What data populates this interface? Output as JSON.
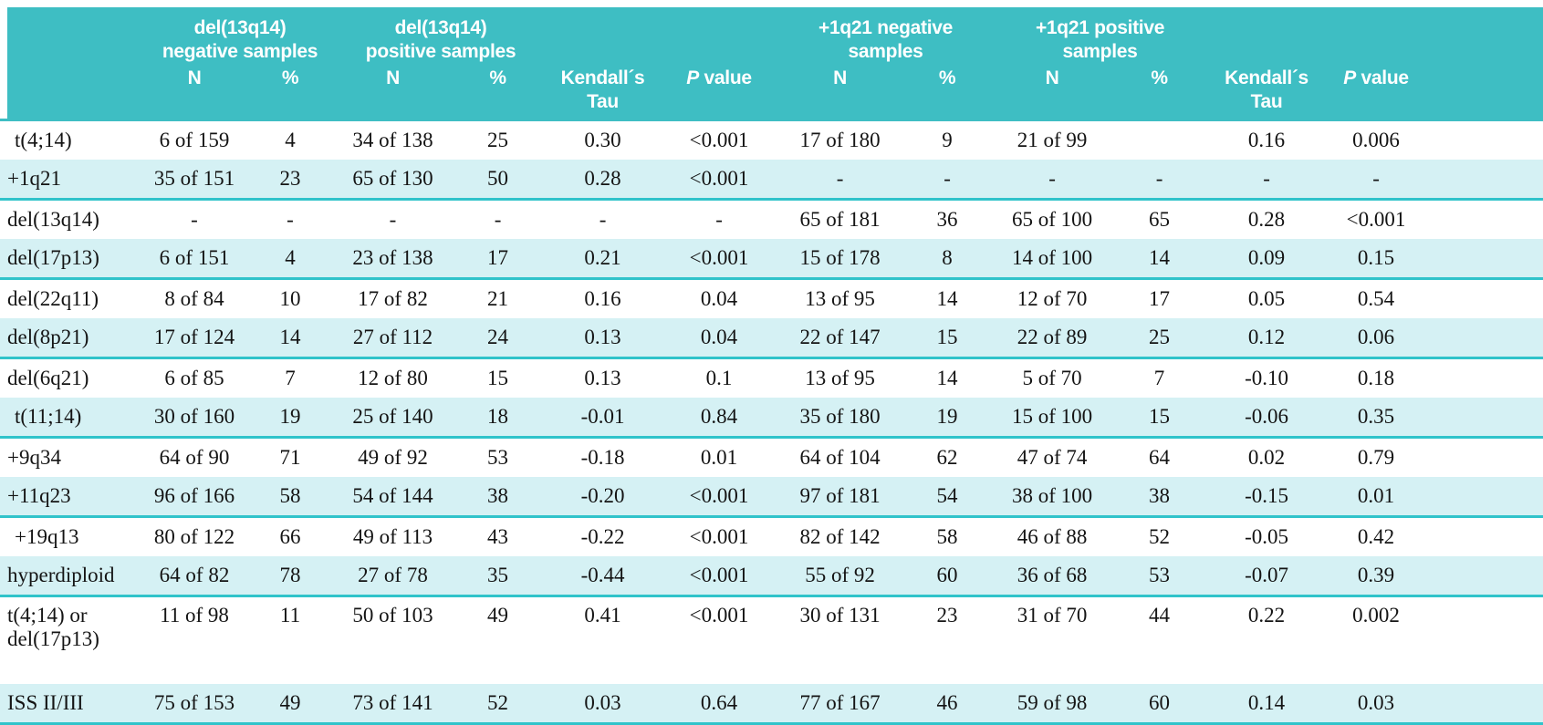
{
  "colors": {
    "header_teal": "#3EBEC3",
    "shaded_row_cyan": "#D5F1F4",
    "rule_teal": "#30C3CA",
    "header_text": "#FFFFFF",
    "body_text": "#141414"
  },
  "table": {
    "column_groups": [
      {
        "label": "del(13q14)\nnegative samples"
      },
      {
        "label": "del(13q14)\npositive samples"
      },
      {
        "label": "+1q21 negative\nsamples"
      },
      {
        "label": "+1q21 positive\nsamples"
      }
    ],
    "sub_columns": [
      "N",
      "%",
      "N",
      "%",
      "Kendall´s\nTau",
      "P value",
      "N",
      "%",
      "N",
      "%",
      "Kendall´s\nTau",
      "P value"
    ],
    "rows": [
      {
        "label": "t(4;14)",
        "indent": true,
        "shaded": false,
        "tall": false,
        "cells": [
          "6 of 159",
          "4",
          "34 of 138",
          "25",
          "0.30",
          "<0.001",
          "17 of 180",
          "9",
          "21 of 99",
          "",
          "0.16",
          "0.006"
        ]
      },
      {
        "label": "+1q21",
        "indent": false,
        "shaded": true,
        "tall": false,
        "cells": [
          "35 of 151",
          "23",
          "65 of 130",
          "50",
          "0.28",
          "<0.001",
          "-",
          "-",
          "-",
          "-",
          "-",
          "-"
        ]
      },
      {
        "label": "del(13q14)",
        "indent": false,
        "shaded": false,
        "tall": false,
        "cells": [
          "-",
          "-",
          "-",
          "-",
          "-",
          "-",
          "65 of 181",
          "36",
          "65 of 100",
          "65",
          "0.28",
          "<0.001"
        ]
      },
      {
        "label": "del(17p13)",
        "indent": false,
        "shaded": true,
        "tall": false,
        "cells": [
          "6 of 151",
          "4",
          "23 of 138",
          "17",
          "0.21",
          "<0.001",
          "15 of 178",
          "8",
          "14 of 100",
          "14",
          "0.09",
          "0.15"
        ]
      },
      {
        "label": "del(22q11)",
        "indent": false,
        "shaded": false,
        "tall": false,
        "cells": [
          "8 of 84",
          "10",
          "17 of 82",
          "21",
          "0.16",
          "0.04",
          "13 of 95",
          "14",
          "12 of 70",
          "17",
          "0.05",
          "0.54"
        ]
      },
      {
        "label": "del(8p21)",
        "indent": false,
        "shaded": true,
        "tall": false,
        "cells": [
          "17 of 124",
          "14",
          "27 of 112",
          "24",
          "0.13",
          "0.04",
          "22 of 147",
          "15",
          "22 of 89",
          "25",
          "0.12",
          "0.06"
        ]
      },
      {
        "label": "del(6q21)",
        "indent": false,
        "shaded": false,
        "tall": false,
        "cells": [
          "6 of 85",
          "7",
          "12 of 80",
          "15",
          "0.13",
          "0.1",
          "13 of 95",
          "14",
          "5 of 70",
          "7",
          "-0.10",
          "0.18"
        ]
      },
      {
        "label": "t(11;14)",
        "indent": true,
        "shaded": true,
        "tall": false,
        "cells": [
          "30 of 160",
          "19",
          "25 of 140",
          "18",
          "-0.01",
          "0.84",
          "35 of 180",
          "19",
          "15 of 100",
          "15",
          "-0.06",
          "0.35"
        ]
      },
      {
        "label": "+9q34",
        "indent": false,
        "shaded": false,
        "tall": false,
        "cells": [
          "64 of 90",
          "71",
          "49 of 92",
          "53",
          "-0.18",
          "0.01",
          "64 of 104",
          "62",
          "47 of 74",
          "64",
          "0.02",
          "0.79"
        ]
      },
      {
        "label": "+11q23",
        "indent": false,
        "shaded": true,
        "tall": false,
        "cells": [
          "96 of 166",
          "58",
          "54 of 144",
          "38",
          "-0.20",
          "<0.001",
          "97 of 181",
          "54",
          "38 of 100",
          "38",
          "-0.15",
          "0.01"
        ]
      },
      {
        "label": "+19q13",
        "indent": true,
        "shaded": false,
        "tall": false,
        "cells": [
          "80 of 122",
          "66",
          "49 of 113",
          "43",
          "-0.22",
          "<0.001",
          "82 of 142",
          "58",
          "46 of 88",
          "52",
          "-0.05",
          "0.42"
        ]
      },
      {
        "label": "hyperdiploid",
        "indent": false,
        "shaded": true,
        "tall": false,
        "cells": [
          "64 of 82",
          "78",
          "27 of 78",
          "35",
          "-0.44",
          "<0.001",
          "55 of 92",
          "60",
          "36 of 68",
          "53",
          "-0.07",
          "0.39"
        ]
      },
      {
        "label": "t(4;14) or\ndel(17p13)",
        "indent": false,
        "shaded": false,
        "tall": true,
        "cells": [
          "11 of 98",
          "11",
          "50 of 103",
          "49",
          "0.41",
          "<0.001",
          "30 of 131",
          "23",
          "31 of 70",
          "44",
          "0.22",
          "0.002"
        ]
      },
      {
        "label": "ISS II/III",
        "indent": false,
        "shaded": true,
        "tall": false,
        "cells": [
          "75 of 153",
          "49",
          "73 of 141",
          "52",
          "0.03",
          "0.64",
          "77 of 167",
          "46",
          "59 of 98",
          "60",
          "0.14",
          "0.03"
        ]
      }
    ]
  }
}
